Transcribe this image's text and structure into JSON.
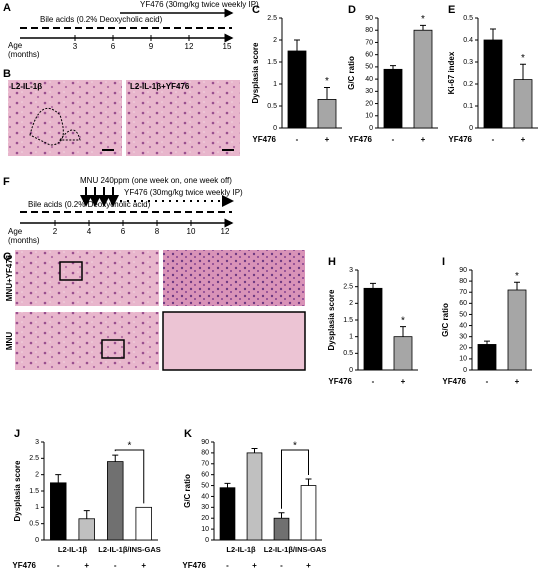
{
  "timeline_a": {
    "label": "A",
    "treatment": "YF476 (30mg/kg twice weekly IP)",
    "bile": "Bile acids (0.2% Deoxycholic acid)",
    "age": [
      "Age",
      "(months)"
    ],
    "ticks": [
      "3",
      "6",
      "9",
      "12",
      "15"
    ]
  },
  "images_b": {
    "label": "B",
    "captions": [
      "L2-IL-1β",
      "L2-IL-1β+YF476"
    ]
  },
  "timeline_f": {
    "label": "F",
    "mnu": "MNU  240ppm (one week on, one week off)",
    "treatment": "YF476 (30mg/kg twice weekly IP)",
    "bile": "Bile acids (0.2% Deoxycholic acid)",
    "age": [
      "Age",
      "(months)"
    ],
    "ticks": [
      "2",
      "4",
      "6",
      "8",
      "10",
      "12"
    ]
  },
  "images_g": {
    "label": "G",
    "rows": [
      "MNU+YF476",
      "MNU"
    ]
  },
  "chart_data": [
    {
      "type": "bar",
      "panel": "C",
      "ylabel": "Dysplasia score",
      "xlabel": "YF476",
      "categories": [
        "-",
        "+"
      ],
      "values": [
        1.75,
        0.65
      ],
      "errors": [
        0.25,
        0.27
      ],
      "colors": [
        "#000000",
        "#a6a6a6"
      ],
      "ylim": [
        0,
        2.5
      ],
      "yticks": [
        0,
        0.5,
        1,
        1.5,
        2,
        2.5
      ],
      "significance": "*"
    },
    {
      "type": "bar",
      "panel": "D",
      "ylabel": "G/C ratio",
      "xlabel": "YF476",
      "categories": [
        "-",
        "+"
      ],
      "values": [
        48,
        80
      ],
      "errors": [
        3,
        4
      ],
      "colors": [
        "#000000",
        "#a6a6a6"
      ],
      "ylim": [
        0,
        90
      ],
      "yticks": [
        0,
        10,
        20,
        30,
        40,
        50,
        60,
        70,
        80,
        90
      ],
      "significance": "*"
    },
    {
      "type": "bar",
      "panel": "E",
      "ylabel": "Ki-67 index",
      "xlabel": "YF476",
      "categories": [
        "-",
        "+"
      ],
      "values": [
        0.4,
        0.22
      ],
      "errors": [
        0.05,
        0.07
      ],
      "colors": [
        "#000000",
        "#a6a6a6"
      ],
      "ylim": [
        0,
        0.5
      ],
      "yticks": [
        0,
        0.1,
        0.2,
        0.3,
        0.4,
        0.5
      ],
      "significance": "*"
    },
    {
      "type": "bar",
      "panel": "H",
      "ylabel": "Dysplasia score",
      "xlabel": "YF476",
      "categories": [
        "-",
        "+"
      ],
      "values": [
        2.45,
        1.0
      ],
      "errors": [
        0.15,
        0.3
      ],
      "colors": [
        "#000000",
        "#a6a6a6"
      ],
      "ylim": [
        0,
        3
      ],
      "yticks": [
        0,
        0.5,
        1,
        1.5,
        2,
        2.5,
        3
      ],
      "significance": "*"
    },
    {
      "type": "bar",
      "panel": "I",
      "ylabel": "G/C ratio",
      "xlabel": "YF476",
      "categories": [
        "-",
        "+"
      ],
      "values": [
        23,
        72
      ],
      "errors": [
        3,
        7
      ],
      "colors": [
        "#000000",
        "#a6a6a6"
      ],
      "ylim": [
        0,
        90
      ],
      "yticks": [
        0,
        10,
        20,
        30,
        40,
        50,
        60,
        70,
        80,
        90
      ],
      "significance": "*"
    },
    {
      "type": "bar",
      "panel": "J",
      "ylabel": "Dysplasia score",
      "xlabel": "YF476",
      "groups": [
        "L2-IL-1β",
        "L2-IL-1β/INS-GAS"
      ],
      "categories": [
        "-",
        "+",
        "-",
        "+"
      ],
      "values": [
        1.75,
        0.65,
        2.4,
        1.0
      ],
      "errors": [
        0.25,
        0.25,
        0.2,
        null
      ],
      "colors": [
        "#000000",
        "#c0c0c0",
        "#707070",
        "#ffffff"
      ],
      "ylim": [
        0,
        3
      ],
      "yticks": [
        0,
        0.5,
        1,
        1.5,
        2,
        2.5,
        3
      ],
      "significance": "*"
    },
    {
      "type": "bar",
      "panel": "K",
      "ylabel": "G/C ratio",
      "xlabel": "YF476",
      "groups": [
        "L2-IL-1β",
        "L2-IL-1β/INS-GAS"
      ],
      "categories": [
        "-",
        "+",
        "-",
        "+"
      ],
      "values": [
        48,
        80,
        20,
        50
      ],
      "errors": [
        4,
        4,
        5,
        6
      ],
      "colors": [
        "#000000",
        "#c0c0c0",
        "#707070",
        "#ffffff"
      ],
      "ylim": [
        0,
        90
      ],
      "yticks": [
        0,
        10,
        20,
        30,
        40,
        50,
        60,
        70,
        80,
        90
      ],
      "significance": "*"
    }
  ]
}
